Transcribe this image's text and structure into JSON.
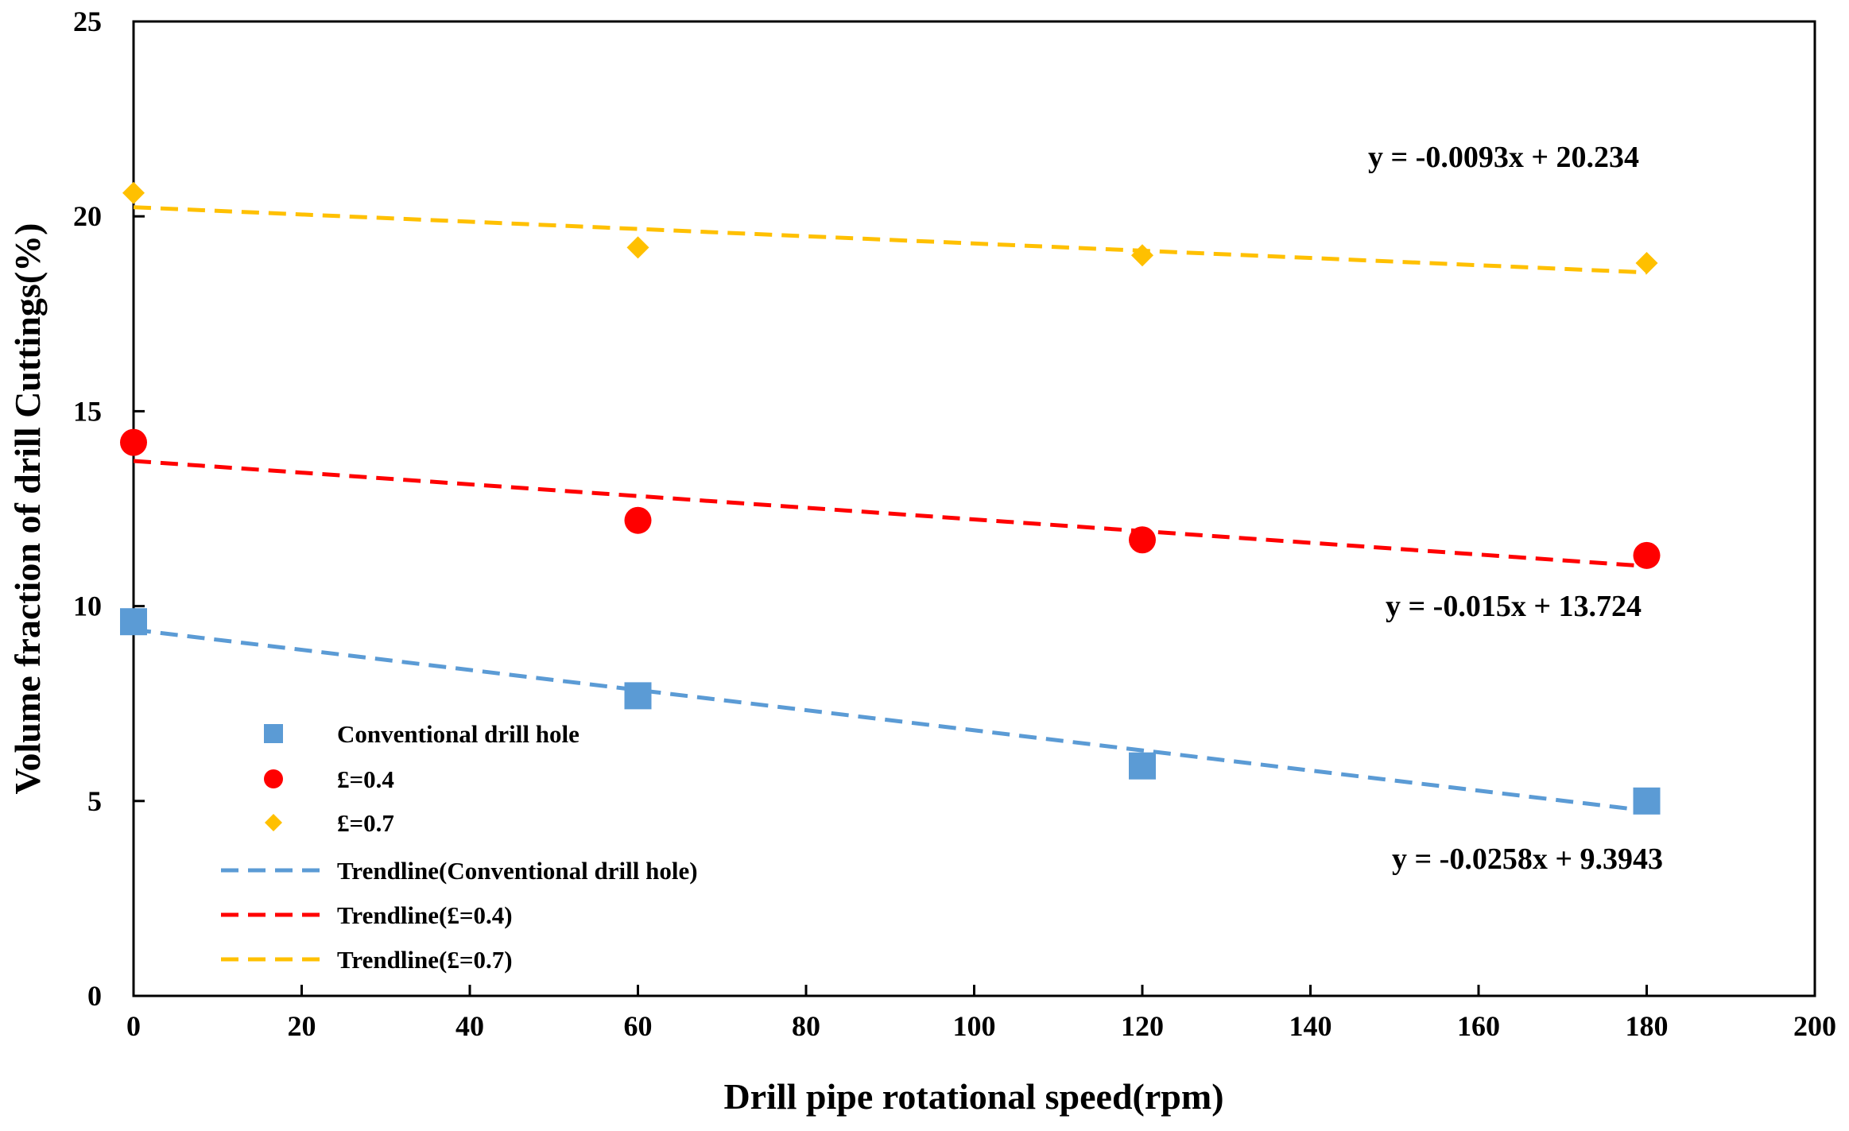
{
  "chart_data": {
    "type": "scatter",
    "title": "",
    "xlabel": "Drill  pipe rotational speed(rpm)",
    "ylabel": "Volume  fraction of drill  Cuttings(%)",
    "xlim": [
      0,
      200
    ],
    "ylim": [
      0,
      25
    ],
    "xticks": [
      0,
      20,
      40,
      60,
      80,
      100,
      120,
      140,
      160,
      180,
      200
    ],
    "yticks": [
      0,
      5,
      10,
      15,
      20,
      25
    ],
    "grid": false,
    "legend_position": "bottom-left",
    "series": [
      {
        "name": "Conventional drill hole",
        "marker": "square",
        "color": "#5B9BD5",
        "x": [
          0,
          60,
          120,
          180
        ],
        "y": [
          9.6,
          7.7,
          5.9,
          5.0
        ],
        "trendline": {
          "name": "Trendline(Conventional drill hole)",
          "slope": -0.0258,
          "intercept": 9.3943,
          "equation": "y = -0.0258x + 9.3943"
        }
      },
      {
        "name": "£=0.4",
        "marker": "circle",
        "color": "#FF0000",
        "x": [
          0,
          60,
          120,
          180
        ],
        "y": [
          14.2,
          12.2,
          11.7,
          11.3
        ],
        "trendline": {
          "name": "Trendline(£=0.4)",
          "slope": -0.015,
          "intercept": 13.724,
          "equation": "y = -0.015x + 13.724"
        }
      },
      {
        "name": "£=0.7",
        "marker": "diamond",
        "color": "#FFC000",
        "x": [
          0,
          60,
          120,
          180
        ],
        "y": [
          20.6,
          19.2,
          19.0,
          18.8
        ],
        "trendline": {
          "name": "Trendline(£=0.7)",
          "slope": -0.0093,
          "intercept": 20.234,
          "equation": "y = -0.0093x + 20.234"
        }
      }
    ]
  }
}
